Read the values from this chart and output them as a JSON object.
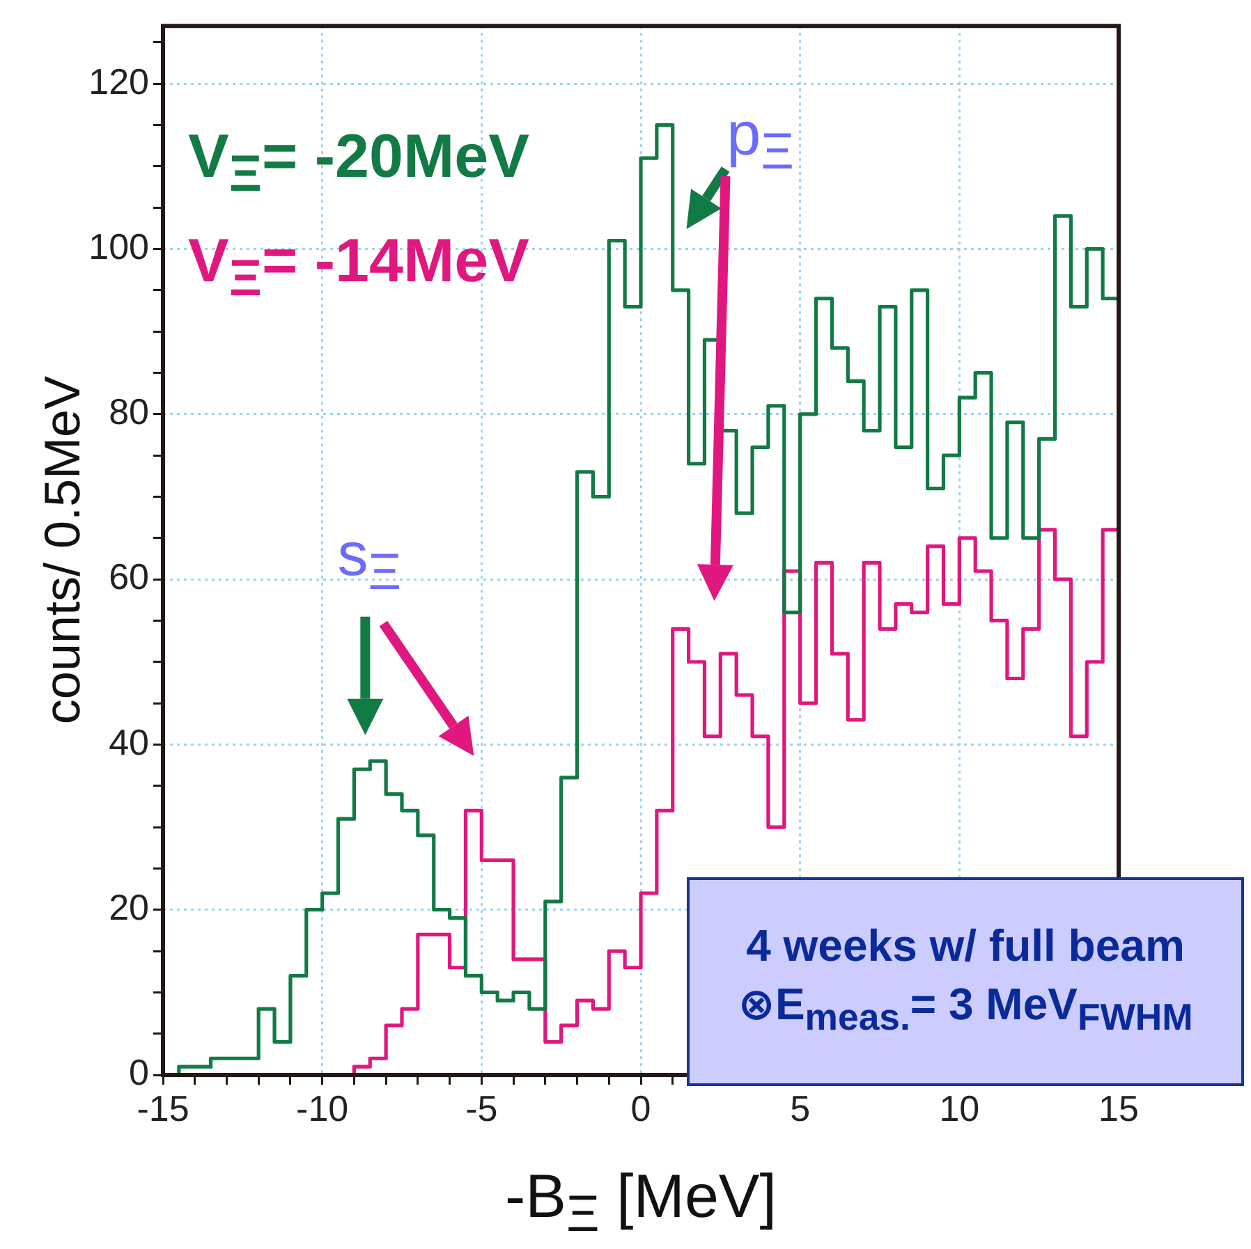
{
  "chart_data": {
    "type": "histogram",
    "xlabel": "-B$_{Ξ}$ [MeV]",
    "ylabel": "counts/ 0.5MeV",
    "bins": [
      -15,
      -14.5,
      -14,
      -13.5,
      -13,
      -12.5,
      -12,
      -11.5,
      -11,
      -10.5,
      -10,
      -9.5,
      -9,
      -8.5,
      -8,
      -7.5,
      -7,
      -6.5,
      -6,
      -5.5,
      -5,
      -4.5,
      -4,
      -3.5,
      -3,
      -2.5,
      -2,
      -1.5,
      -1,
      -0.5,
      0,
      0.5,
      1,
      1.5,
      2,
      2.5,
      3,
      3.5,
      4,
      4.5,
      5,
      5.5,
      6,
      6.5,
      7,
      7.5,
      8,
      8.5,
      9,
      9.5,
      10,
      10.5,
      11,
      11.5,
      12,
      12.5,
      13,
      13.5,
      14,
      14.5,
      15
    ],
    "series": [
      {
        "name": "V$_{Ξ}$= -20MeV",
        "color": "#127a45",
        "values": [
          0,
          1,
          1,
          2,
          2,
          2,
          8,
          4,
          12,
          20,
          22,
          31,
          37,
          38,
          34,
          32,
          29,
          20,
          19,
          12,
          10,
          9,
          10,
          8,
          21,
          36,
          73,
          70,
          101,
          93,
          111,
          115,
          95,
          74,
          89,
          78,
          68,
          76,
          81,
          56,
          80,
          94,
          88,
          84,
          78,
          93,
          76,
          95,
          71,
          75,
          82,
          85,
          65,
          79,
          65,
          77,
          104,
          93,
          100,
          94
        ]
      },
      {
        "name": "V$_{Ξ}$= -14MeV",
        "color": "#e0177f",
        "values": [
          0,
          0,
          0,
          0,
          0,
          0,
          0,
          0,
          0,
          0,
          0,
          0,
          1,
          2,
          6,
          8,
          17,
          17,
          13,
          32,
          26,
          26,
          14,
          14,
          4,
          6,
          9,
          8,
          15,
          13,
          22,
          32,
          54,
          50,
          41,
          51,
          46,
          41,
          30,
          61,
          45,
          62,
          51,
          43,
          62,
          54,
          57,
          56,
          64,
          57,
          65,
          61,
          55,
          48,
          54,
          66,
          60,
          41,
          50,
          66
        ]
      }
    ],
    "xlim": [
      -15,
      15
    ],
    "ylim": [
      0,
      127
    ],
    "xticks": [
      -15,
      {
        "value": -14,
        "label": null
      },
      {
        "value": -13,
        "label": null
      },
      {
        "value": -12,
        "label": null
      },
      {
        "value": -11,
        "label": null
      },
      -10,
      {
        "value": -9,
        "label": null
      },
      {
        "value": -8,
        "label": null
      },
      {
        "value": -7,
        "label": null
      },
      {
        "value": -6,
        "label": null
      },
      -5,
      {
        "value": -4,
        "label": null
      },
      {
        "value": -3,
        "label": null
      },
      {
        "value": -2,
        "label": null
      },
      {
        "value": -1,
        "label": null
      },
      0,
      {
        "value": 1,
        "label": null
      },
      {
        "value": 2,
        "label": null
      },
      {
        "value": 3,
        "label": null
      },
      {
        "value": 4,
        "label": null
      },
      5,
      {
        "value": 6,
        "label": null
      },
      {
        "value": 7,
        "label": null
      },
      {
        "value": 8,
        "label": null
      },
      {
        "value": 9,
        "label": null
      },
      10,
      {
        "value": 11,
        "label": null
      },
      {
        "value": 12,
        "label": null
      },
      {
        "value": 13,
        "label": null
      },
      {
        "value": 14,
        "label": null
      },
      15
    ],
    "yticks": [
      0,
      {
        "value": 5,
        "label": null
      },
      {
        "value": 10,
        "label": null
      },
      {
        "value": 15,
        "label": null
      },
      20,
      {
        "value": 25,
        "label": null
      },
      {
        "value": 30,
        "label": null
      },
      {
        "value": 35,
        "label": null
      },
      40,
      {
        "value": 45,
        "label": null
      },
      {
        "value": 50,
        "label": null
      },
      {
        "value": 55,
        "label": null
      },
      60,
      {
        "value": 65,
        "label": null
      },
      {
        "value": 70,
        "label": null
      },
      {
        "value": 75,
        "label": null
      },
      80,
      {
        "value": 85,
        "label": null
      },
      {
        "value": 90,
        "label": null
      },
      {
        "value": 95,
        "label": null
      },
      100,
      {
        "value": 105,
        "label": null
      },
      {
        "value": 110,
        "label": null
      },
      {
        "value": 115,
        "label": null
      },
      120,
      {
        "value": 125,
        "label": null
      }
    ],
    "grid": true,
    "legend": "top left",
    "annotations": [
      "s$_{Ξ}$",
      "p$_{Ξ}$",
      "4 weeks w/ full beam",
      "⊗E$_{meas.}$= 3 MeV$_{FWHM}$"
    ]
  }
}
